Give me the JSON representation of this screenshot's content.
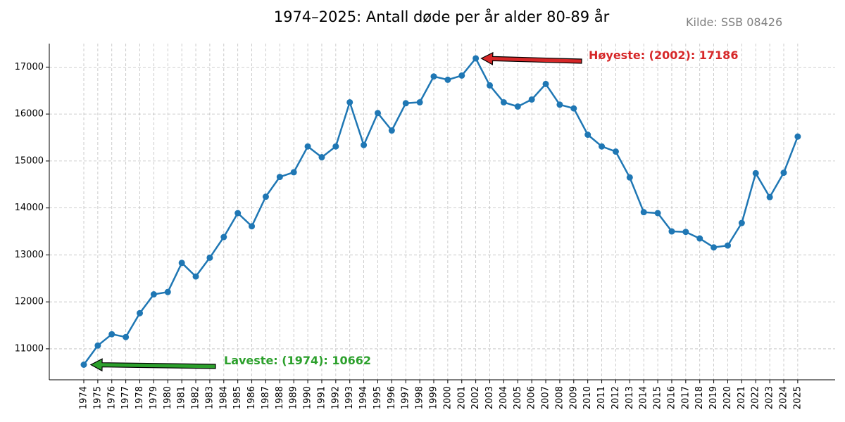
{
  "chart_data": {
    "type": "line",
    "title": "1974–2025: Antall døde per år alder 80-89 år",
    "source": "Kilde: SSB 08426",
    "xlabel": "",
    "ylabel": "",
    "ylim": [
      10340,
      17500
    ],
    "yticks": [
      11000,
      12000,
      13000,
      14000,
      15000,
      16000,
      17000
    ],
    "grid": true,
    "color": "#1f77b4",
    "x": [
      "1974",
      "1975",
      "1976",
      "1977",
      "1978",
      "1979",
      "1980",
      "1981",
      "1982",
      "1983",
      "1984",
      "1985",
      "1986",
      "1987",
      "1988",
      "1989",
      "1990",
      "1991",
      "1992",
      "1993",
      "1994",
      "1995",
      "1996",
      "1997",
      "1998",
      "1999",
      "2000",
      "2001",
      "2002",
      "2003",
      "2004",
      "2005",
      "2006",
      "2007",
      "2008",
      "2009",
      "2010",
      "2011",
      "2012",
      "2013",
      "2014",
      "2015",
      "2016",
      "2017",
      "2018",
      "2019",
      "2020",
      "2021",
      "2022",
      "2023",
      "2024",
      "2025"
    ],
    "values": [
      10662,
      11070,
      11310,
      11250,
      11760,
      12160,
      12210,
      12830,
      12540,
      12940,
      13380,
      13890,
      13610,
      14240,
      14660,
      14760,
      15310,
      15080,
      15310,
      16250,
      15340,
      16020,
      15650,
      16230,
      16250,
      16800,
      16730,
      16820,
      17186,
      16610,
      16250,
      16160,
      16310,
      16640,
      16200,
      16120,
      15560,
      15310,
      15200,
      14650,
      13910,
      13890,
      13500,
      13490,
      13350,
      13160,
      13200,
      13680,
      14740,
      14230,
      14750,
      15520
    ],
    "annotations": {
      "max": {
        "label": "Høyeste: (2002): 17186",
        "color": "#d62728",
        "year": "2002",
        "value": 17186
      },
      "min": {
        "label": "Laveste: (1974): 10662",
        "color": "#2ca02c",
        "year": "1974",
        "value": 10662
      }
    }
  }
}
